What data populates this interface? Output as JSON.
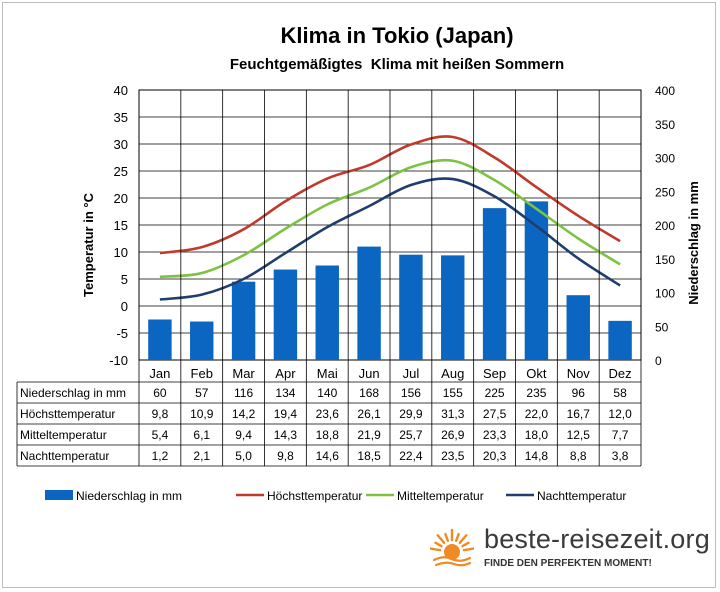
{
  "chart_data": {
    "type": "bar",
    "title": "Klima in Tokio (Japan)",
    "subtitle": "Feuchtgemäßigtes  Klima mit heißen Sommern",
    "ylabel_left": "Temperatur in °C",
    "ylabel_right": "Niederschlag in mm",
    "ylim_left": [
      -10,
      40
    ],
    "ylim_right": [
      0,
      400
    ],
    "yticks_left": [
      "40",
      "35",
      "30",
      "25",
      "20",
      "15",
      "10",
      "5",
      "0",
      "-5",
      "-10"
    ],
    "yticks_right": [
      "400",
      "350",
      "300",
      "250",
      "200",
      "150",
      "100",
      "50",
      "0"
    ],
    "grid": true,
    "legend_position": "bottom",
    "categories": [
      "Jan",
      "Feb",
      "Mar",
      "Apr",
      "Mai",
      "Jun",
      "Jul",
      "Aug",
      "Sep",
      "Okt",
      "Nov",
      "Dez"
    ],
    "series": [
      {
        "name": "Niederschlag in mm",
        "type": "bar",
        "axis": "right",
        "color": "#0b66c2",
        "values": [
          60,
          57,
          116,
          134,
          140,
          168,
          156,
          155,
          225,
          235,
          96,
          58
        ],
        "labels": [
          "60",
          "57",
          "116",
          "134",
          "140",
          "168",
          "156",
          "155",
          "225",
          "235",
          "96",
          "58"
        ]
      },
      {
        "name": "Höchsttemperatur",
        "type": "line",
        "axis": "left",
        "color": "#c0392b",
        "values": [
          9.8,
          10.9,
          14.2,
          19.4,
          23.6,
          26.1,
          29.9,
          31.3,
          27.5,
          22.0,
          16.7,
          12.0
        ],
        "labels": [
          "9,8",
          "10,9",
          "14,2",
          "19,4",
          "23,6",
          "26,1",
          "29,9",
          "31,3",
          "27,5",
          "22,0",
          "16,7",
          "12,0"
        ]
      },
      {
        "name": "Mitteltemperatur",
        "type": "line",
        "axis": "left",
        "color": "#7dc242",
        "values": [
          5.4,
          6.1,
          9.4,
          14.3,
          18.8,
          21.9,
          25.7,
          26.9,
          23.3,
          18.0,
          12.5,
          7.7
        ],
        "labels": [
          "5,4",
          "6,1",
          "9,4",
          "14,3",
          "18,8",
          "21,9",
          "25,7",
          "26,9",
          "23,3",
          "18,0",
          "12,5",
          "7,7"
        ]
      },
      {
        "name": "Nachttemperatur",
        "type": "line",
        "axis": "left",
        "color": "#1f3e6e",
        "values": [
          1.2,
          2.1,
          5.0,
          9.8,
          14.6,
          18.5,
          22.4,
          23.5,
          20.3,
          14.8,
          8.8,
          3.8
        ],
        "labels": [
          "1,2",
          "2,1",
          "5,0",
          "9,8",
          "14,6",
          "18,5",
          "22,4",
          "23,5",
          "20,3",
          "14,8",
          "8,8",
          "3,8"
        ]
      }
    ]
  },
  "brand": {
    "name": "beste-reisezeit.org",
    "tagline": "FINDE DEN PERFEKTEN MOMENT!",
    "sun_color": "#f08a24"
  }
}
